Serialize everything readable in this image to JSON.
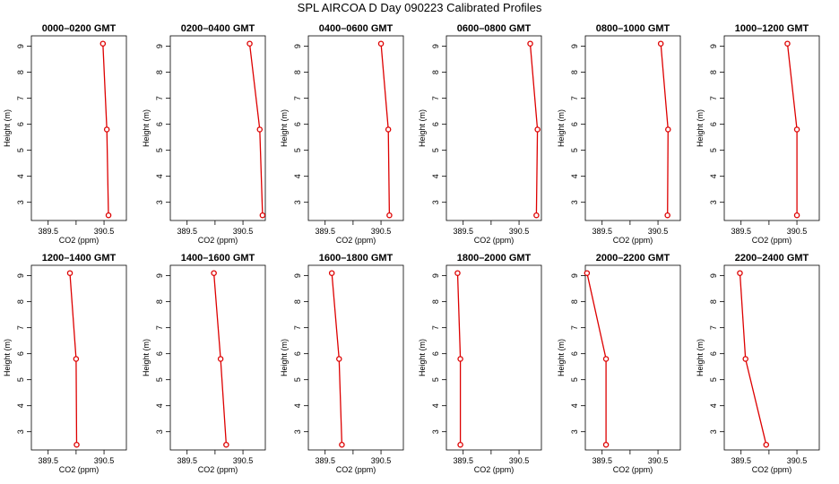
{
  "title": "SPL AIRCOA D  Day 090223  Calibrated Profiles",
  "colors": {
    "series": "#dd0000",
    "axis": "#000000"
  },
  "chart_data": [
    {
      "type": "line",
      "title": "0000–0200 GMT",
      "xlabel": "CO2 (ppm)",
      "ylabel": "Height (m)",
      "xlim": [
        389.2,
        390.9
      ],
      "ylim": [
        2.3,
        9.4
      ],
      "xticks": [
        389.5,
        390.0,
        390.5
      ],
      "xtick_labels": [
        "389.5",
        "",
        "390.5"
      ],
      "yticks": [
        3,
        4,
        5,
        6,
        7,
        8,
        9
      ],
      "x": [
        390.48,
        390.55,
        390.58
      ],
      "y": [
        9.1,
        5.8,
        2.5
      ]
    },
    {
      "type": "line",
      "title": "0200–0400 GMT",
      "xlabel": "CO2 (ppm)",
      "ylabel": "Height (m)",
      "xlim": [
        389.2,
        390.9
      ],
      "ylim": [
        2.3,
        9.4
      ],
      "xticks": [
        389.5,
        390.0,
        390.5
      ],
      "xtick_labels": [
        "389.5",
        "",
        "390.5"
      ],
      "yticks": [
        3,
        4,
        5,
        6,
        7,
        8,
        9
      ],
      "x": [
        390.62,
        390.8,
        390.85
      ],
      "y": [
        9.1,
        5.8,
        2.5
      ]
    },
    {
      "type": "line",
      "title": "0400–0600 GMT",
      "xlabel": "CO2 (ppm)",
      "ylabel": "Height (m)",
      "xlim": [
        389.2,
        390.9
      ],
      "ylim": [
        2.3,
        9.4
      ],
      "xticks": [
        389.5,
        390.0,
        390.5
      ],
      "xtick_labels": [
        "389.5",
        "",
        "390.5"
      ],
      "yticks": [
        3,
        4,
        5,
        6,
        7,
        8,
        9
      ],
      "x": [
        390.5,
        390.63,
        390.65
      ],
      "y": [
        9.1,
        5.8,
        2.5
      ]
    },
    {
      "type": "line",
      "title": "0600–0800 GMT",
      "xlabel": "CO2 (ppm)",
      "ylabel": "Height (m)",
      "xlim": [
        389.2,
        390.9
      ],
      "ylim": [
        2.3,
        9.4
      ],
      "xticks": [
        389.5,
        390.0,
        390.5
      ],
      "xtick_labels": [
        "389.5",
        "",
        "390.5"
      ],
      "yticks": [
        3,
        4,
        5,
        6,
        7,
        8,
        9
      ],
      "x": [
        390.7,
        390.83,
        390.81
      ],
      "y": [
        9.1,
        5.8,
        2.5
      ]
    },
    {
      "type": "line",
      "title": "0800–1000 GMT",
      "xlabel": "CO2 (ppm)",
      "ylabel": "Height (m)",
      "xlim": [
        389.2,
        390.9
      ],
      "ylim": [
        2.3,
        9.4
      ],
      "xticks": [
        389.5,
        390.0,
        390.5
      ],
      "xtick_labels": [
        "389.5",
        "",
        "390.5"
      ],
      "yticks": [
        3,
        4,
        5,
        6,
        7,
        8,
        9
      ],
      "x": [
        390.55,
        390.68,
        390.67
      ],
      "y": [
        9.1,
        5.8,
        2.5
      ]
    },
    {
      "type": "line",
      "title": "1000–1200 GMT",
      "xlabel": "CO2 (ppm)",
      "ylabel": "Height (m)",
      "xlim": [
        389.2,
        390.9
      ],
      "ylim": [
        2.3,
        9.4
      ],
      "xticks": [
        389.5,
        390.0,
        390.5
      ],
      "xtick_labels": [
        "389.5",
        "",
        "390.5"
      ],
      "yticks": [
        3,
        4,
        5,
        6,
        7,
        8,
        9
      ],
      "x": [
        390.33,
        390.5,
        390.5
      ],
      "y": [
        9.1,
        5.8,
        2.5
      ]
    },
    {
      "type": "line",
      "title": "1200–1400 GMT",
      "xlabel": "CO2 (ppm)",
      "ylabel": "Height (m)",
      "xlim": [
        389.2,
        390.9
      ],
      "ylim": [
        2.3,
        9.4
      ],
      "xticks": [
        389.5,
        390.0,
        390.5
      ],
      "xtick_labels": [
        "389.5",
        "",
        "390.5"
      ],
      "yticks": [
        3,
        4,
        5,
        6,
        7,
        8,
        9
      ],
      "x": [
        389.89,
        390.0,
        390.01
      ],
      "y": [
        9.1,
        5.8,
        2.5
      ]
    },
    {
      "type": "line",
      "title": "1400–1600 GMT",
      "xlabel": "CO2 (ppm)",
      "ylabel": "Height (m)",
      "xlim": [
        389.2,
        390.9
      ],
      "ylim": [
        2.3,
        9.4
      ],
      "xticks": [
        389.5,
        390.0,
        390.5
      ],
      "xtick_labels": [
        "389.5",
        "",
        "390.5"
      ],
      "yticks": [
        3,
        4,
        5,
        6,
        7,
        8,
        9
      ],
      "x": [
        389.98,
        390.1,
        390.2
      ],
      "y": [
        9.1,
        5.8,
        2.5
      ]
    },
    {
      "type": "line",
      "title": "1600–1800 GMT",
      "xlabel": "CO2 (ppm)",
      "ylabel": "Height (m)",
      "xlim": [
        389.2,
        390.9
      ],
      "ylim": [
        2.3,
        9.4
      ],
      "xticks": [
        389.5,
        390.0,
        390.5
      ],
      "xtick_labels": [
        "389.5",
        "",
        "390.5"
      ],
      "yticks": [
        3,
        4,
        5,
        6,
        7,
        8,
        9
      ],
      "x": [
        389.62,
        389.75,
        389.8
      ],
      "y": [
        9.1,
        5.8,
        2.5
      ]
    },
    {
      "type": "line",
      "title": "1800–2000 GMT",
      "xlabel": "CO2 (ppm)",
      "ylabel": "Height (m)",
      "xlim": [
        389.2,
        390.9
      ],
      "ylim": [
        2.3,
        9.4
      ],
      "xticks": [
        389.5,
        390.0,
        390.5
      ],
      "xtick_labels": [
        "389.5",
        "",
        "390.5"
      ],
      "yticks": [
        3,
        4,
        5,
        6,
        7,
        8,
        9
      ],
      "x": [
        389.4,
        389.45,
        389.45
      ],
      "y": [
        9.1,
        5.8,
        2.5
      ]
    },
    {
      "type": "line",
      "title": "2000–2200 GMT",
      "xlabel": "CO2 (ppm)",
      "ylabel": "Height (m)",
      "xlim": [
        389.2,
        390.9
      ],
      "ylim": [
        2.3,
        9.4
      ],
      "xticks": [
        389.5,
        390.0,
        390.5
      ],
      "xtick_labels": [
        "389.5",
        "",
        "390.5"
      ],
      "yticks": [
        3,
        4,
        5,
        6,
        7,
        8,
        9
      ],
      "x": [
        389.23,
        389.57,
        389.57
      ],
      "y": [
        9.1,
        5.8,
        2.5
      ]
    },
    {
      "type": "line",
      "title": "2200–2400 GMT",
      "xlabel": "CO2 (ppm)",
      "ylabel": "Height (m)",
      "xlim": [
        389.2,
        390.9
      ],
      "ylim": [
        2.3,
        9.4
      ],
      "xticks": [
        389.5,
        390.0,
        390.5
      ],
      "xtick_labels": [
        "389.5",
        "",
        "390.5"
      ],
      "yticks": [
        3,
        4,
        5,
        6,
        7,
        8,
        9
      ],
      "x": [
        389.48,
        389.58,
        389.95
      ],
      "y": [
        9.1,
        5.8,
        2.5
      ]
    }
  ]
}
